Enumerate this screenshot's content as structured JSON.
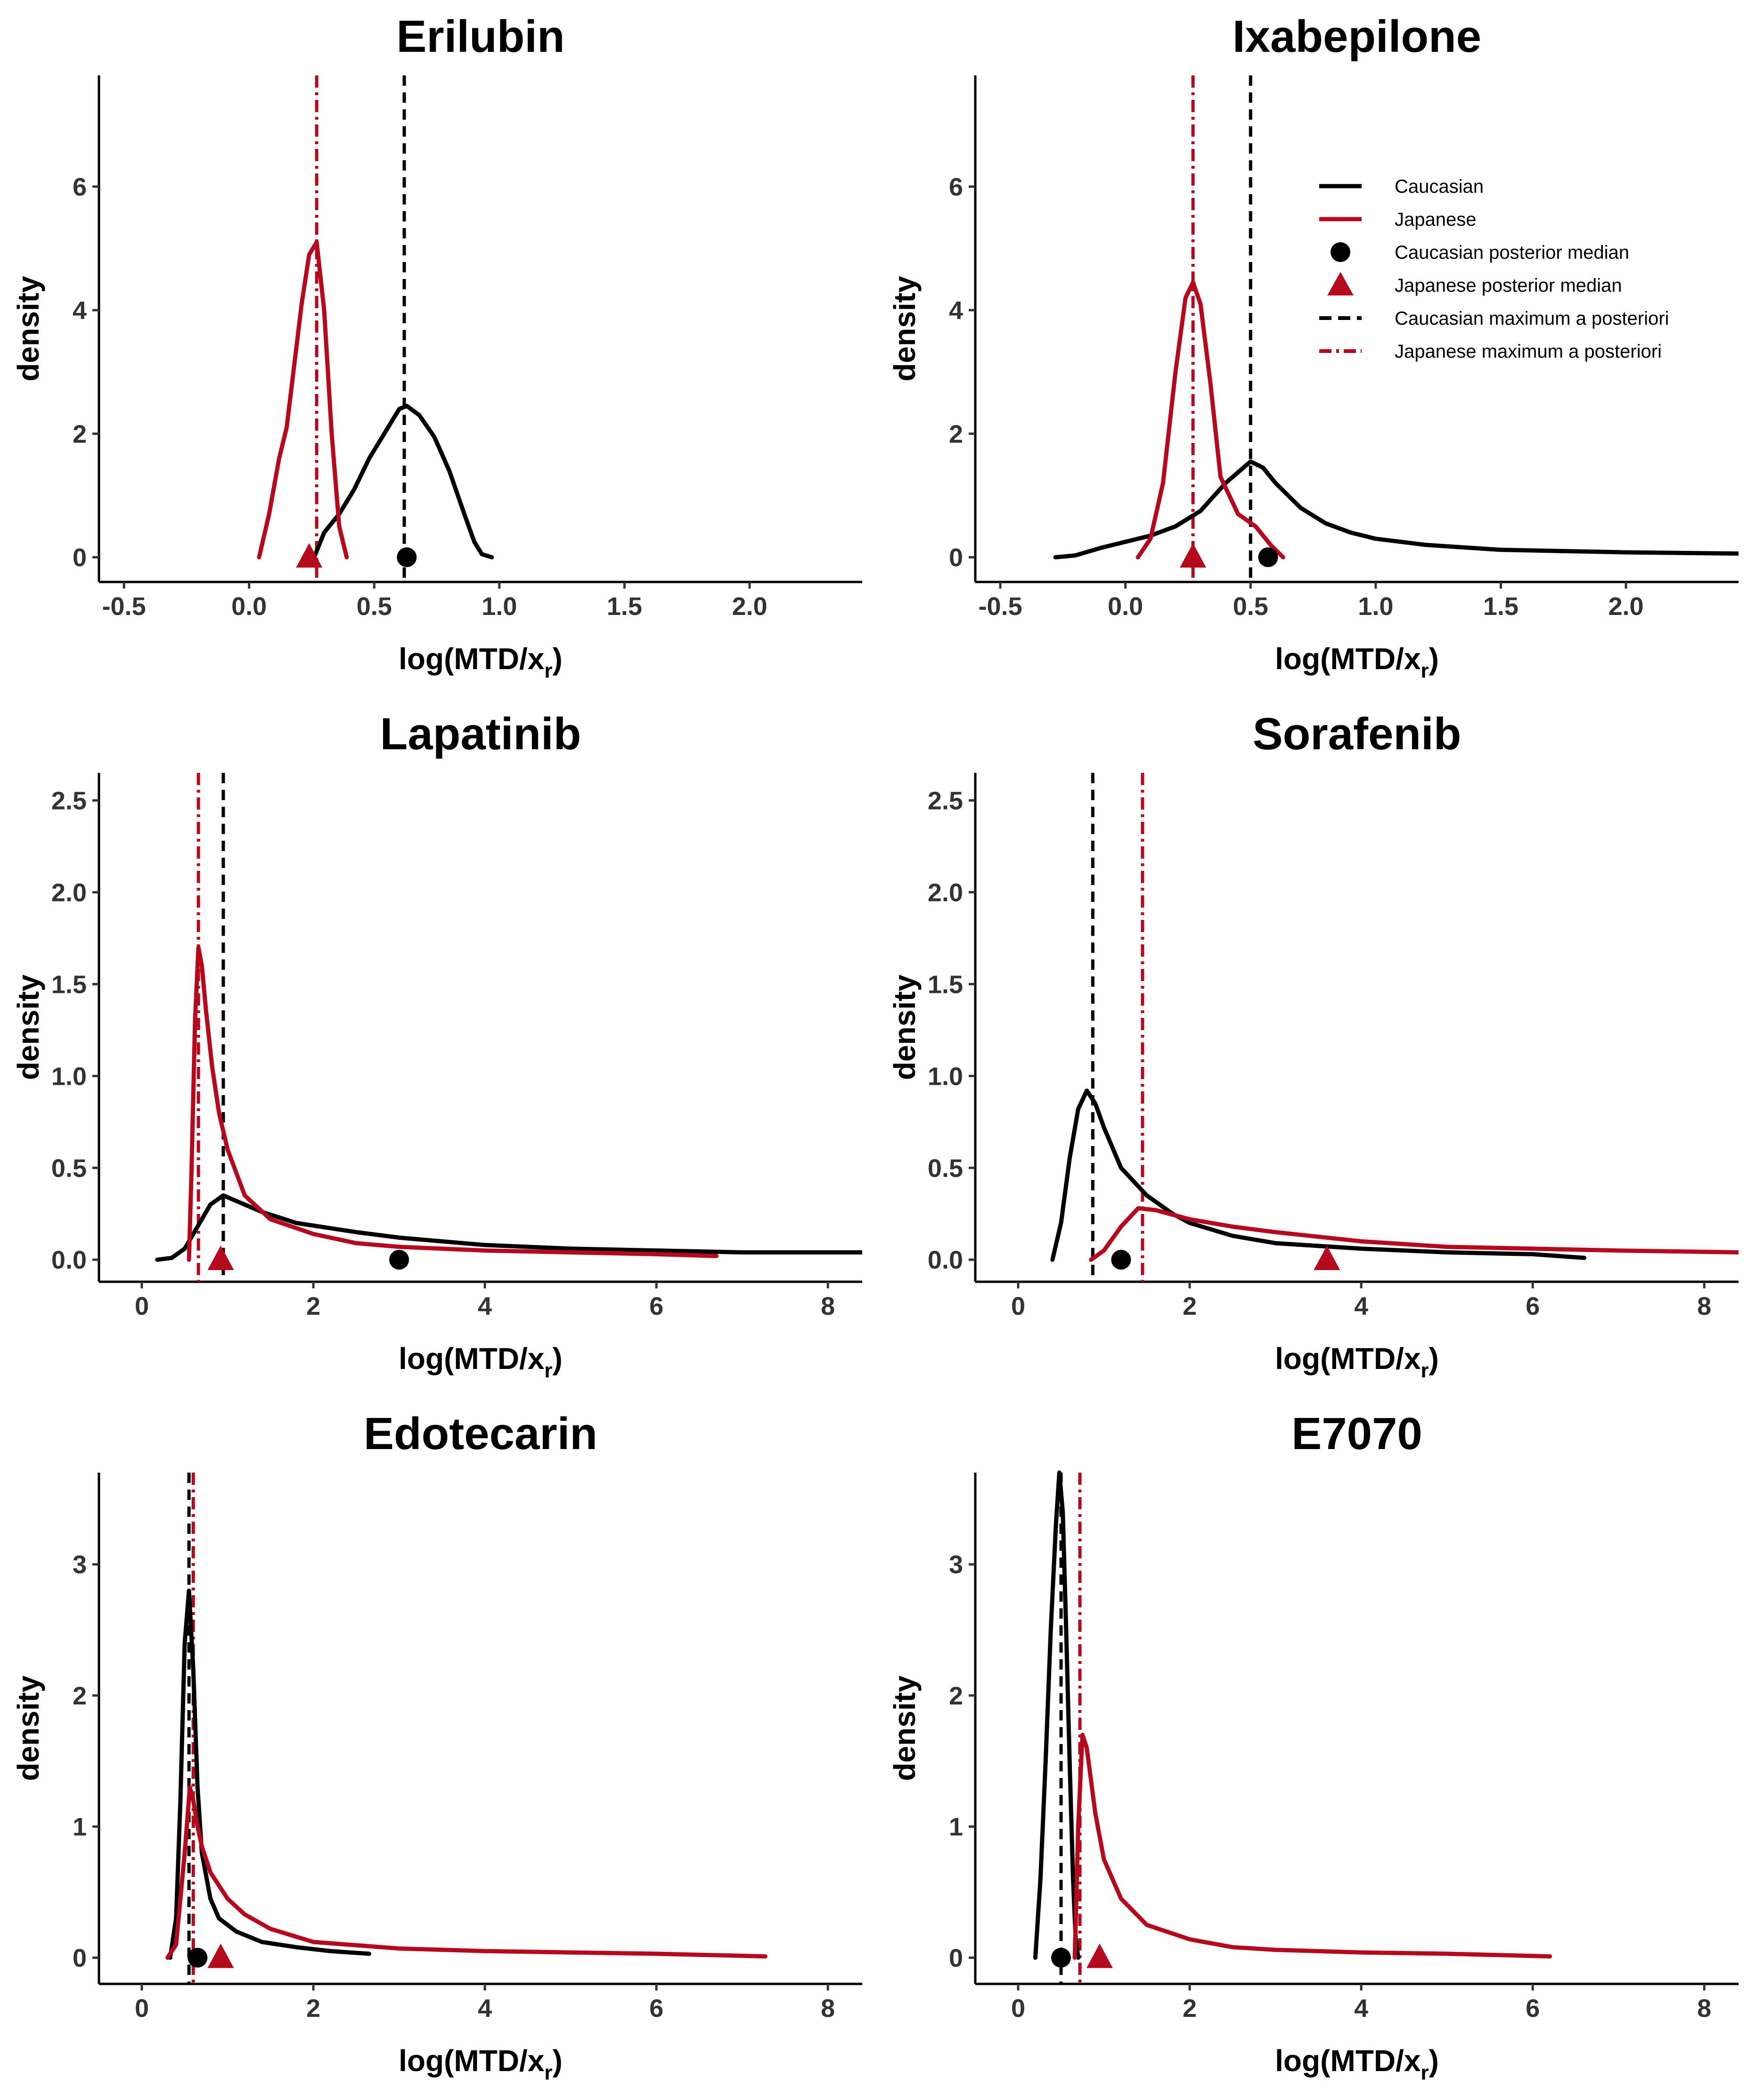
{
  "colors": {
    "caucasian": "#000000",
    "japanese": "#B5091E"
  },
  "chart_data": [
    {
      "type": "line",
      "title": "Erilubin",
      "xlabel": "log(MTD/x_r)",
      "ylabel": "density",
      "xlim": [
        -0.6,
        2.45
      ],
      "ylim": [
        -0.4,
        7.8
      ],
      "xticks": [
        -0.5,
        0.0,
        0.5,
        1.0,
        1.5,
        2.0
      ],
      "xtick_labels": [
        "-0.5",
        "0.0",
        "0.5",
        "1.0",
        "1.5",
        "2.0"
      ],
      "yticks": [
        0,
        2,
        4,
        6
      ],
      "ytick_labels": [
        "0",
        "2",
        "4",
        "6"
      ],
      "series": [
        {
          "name": "Caucasian",
          "x": [
            0.26,
            0.3,
            0.36,
            0.42,
            0.48,
            0.54,
            0.6,
            0.63,
            0.68,
            0.74,
            0.8,
            0.86,
            0.9,
            0.93,
            0.97
          ],
          "y": [
            0,
            0.4,
            0.7,
            1.1,
            1.6,
            2.0,
            2.4,
            2.45,
            2.3,
            1.95,
            1.4,
            0.7,
            0.25,
            0.05,
            0
          ]
        },
        {
          "name": "Japanese",
          "x": [
            0.04,
            0.08,
            0.12,
            0.15,
            0.18,
            0.21,
            0.24,
            0.27,
            0.3,
            0.33,
            0.36,
            0.39
          ],
          "y": [
            0,
            0.7,
            1.6,
            2.1,
            3.1,
            4.1,
            4.9,
            5.1,
            4.0,
            2.0,
            0.5,
            0
          ]
        }
      ],
      "posterior_median": {
        "Caucasian": 0.63,
        "Japanese": 0.24
      },
      "map": {
        "Caucasian": 0.62,
        "Japanese": 0.27
      }
    },
    {
      "type": "line",
      "title": "Ixabepilone",
      "xlabel": "log(MTD/x_r)",
      "ylabel": "density",
      "xlim": [
        -0.6,
        2.45
      ],
      "ylim": [
        -0.4,
        7.8
      ],
      "xticks": [
        -0.5,
        0.0,
        0.5,
        1.0,
        1.5,
        2.0
      ],
      "xtick_labels": [
        "-0.5",
        "0.0",
        "0.5",
        "1.0",
        "1.5",
        "2.0"
      ],
      "yticks": [
        0,
        2,
        4,
        6
      ],
      "ytick_labels": [
        "0",
        "2",
        "4",
        "6"
      ],
      "series": [
        {
          "name": "Caucasian",
          "x": [
            -0.28,
            -0.2,
            -0.1,
            0.0,
            0.1,
            0.2,
            0.3,
            0.4,
            0.5,
            0.55,
            0.6,
            0.7,
            0.8,
            0.9,
            1.0,
            1.2,
            1.5,
            2.0,
            2.45
          ],
          "y": [
            0,
            0.03,
            0.15,
            0.25,
            0.35,
            0.5,
            0.75,
            1.2,
            1.55,
            1.45,
            1.2,
            0.8,
            0.55,
            0.4,
            0.3,
            0.2,
            0.12,
            0.08,
            0.06
          ]
        },
        {
          "name": "Japanese",
          "x": [
            0.05,
            0.1,
            0.15,
            0.2,
            0.24,
            0.27,
            0.3,
            0.34,
            0.38,
            0.45,
            0.52,
            0.58,
            0.63
          ],
          "y": [
            0,
            0.3,
            1.2,
            3.0,
            4.2,
            4.45,
            4.1,
            2.8,
            1.3,
            0.7,
            0.5,
            0.2,
            0
          ]
        }
      ],
      "posterior_median": {
        "Caucasian": 0.57,
        "Japanese": 0.27
      },
      "map": {
        "Caucasian": 0.5,
        "Japanese": 0.27
      },
      "legend": {
        "position": "top-right",
        "entries": [
          "Caucasian",
          "Japanese",
          "Caucasian posterior median",
          "Japanese posterior median",
          "Caucasian maximum a posteriori",
          "Japanese maximum a posteriori"
        ]
      }
    },
    {
      "type": "line",
      "title": "Lapatinib",
      "xlabel": "log(MTD/x_r)",
      "ylabel": "density",
      "xlim": [
        -0.5,
        8.4
      ],
      "ylim": [
        -0.12,
        2.65
      ],
      "xticks": [
        0,
        2,
        4,
        6,
        8
      ],
      "xtick_labels": [
        "0",
        "2",
        "4",
        "6",
        "8"
      ],
      "yticks": [
        0.0,
        0.5,
        1.0,
        1.5,
        2.0,
        2.5
      ],
      "ytick_labels": [
        "0.0",
        "0.5",
        "1.0",
        "1.5",
        "2.0",
        "2.5"
      ],
      "series": [
        {
          "name": "Caucasian",
          "x": [
            0.18,
            0.35,
            0.5,
            0.65,
            0.8,
            0.95,
            1.1,
            1.4,
            1.8,
            2.5,
            3.0,
            4.0,
            5.0,
            6.0,
            7.0,
            8.4
          ],
          "y": [
            0,
            0.01,
            0.06,
            0.18,
            0.3,
            0.35,
            0.32,
            0.26,
            0.2,
            0.15,
            0.12,
            0.08,
            0.06,
            0.05,
            0.04,
            0.04
          ]
        },
        {
          "name": "Japanese",
          "x": [
            0.55,
            0.58,
            0.62,
            0.66,
            0.7,
            0.75,
            0.82,
            0.9,
            1.0,
            1.2,
            1.5,
            2.0,
            2.5,
            3.0,
            4.0,
            5.0,
            6.0,
            6.7
          ],
          "y": [
            0,
            0.5,
            1.3,
            1.7,
            1.6,
            1.35,
            1.05,
            0.8,
            0.6,
            0.35,
            0.22,
            0.14,
            0.09,
            0.07,
            0.05,
            0.04,
            0.03,
            0.02
          ]
        }
      ],
      "posterior_median": {
        "Caucasian": 3.0,
        "Japanese": 0.92
      },
      "map": {
        "Caucasian": 0.95,
        "Japanese": 0.66
      }
    },
    {
      "type": "line",
      "title": "Sorafenib",
      "xlabel": "log(MTD/x_r)",
      "ylabel": "density",
      "xlim": [
        -0.5,
        8.4
      ],
      "ylim": [
        -0.12,
        2.65
      ],
      "xticks": [
        0,
        2,
        4,
        6,
        8
      ],
      "xtick_labels": [
        "0",
        "2",
        "4",
        "6",
        "8"
      ],
      "yticks": [
        0.0,
        0.5,
        1.0,
        1.5,
        2.0,
        2.5
      ],
      "ytick_labels": [
        "0.0",
        "0.5",
        "1.0",
        "1.5",
        "2.0",
        "2.5"
      ],
      "series": [
        {
          "name": "Caucasian",
          "x": [
            0.4,
            0.5,
            0.6,
            0.7,
            0.8,
            0.9,
            1.0,
            1.2,
            1.5,
            1.8,
            2.0,
            2.5,
            3.0,
            4.0,
            5.0,
            6.0,
            6.6
          ],
          "y": [
            0,
            0.2,
            0.55,
            0.82,
            0.92,
            0.85,
            0.72,
            0.5,
            0.35,
            0.25,
            0.2,
            0.13,
            0.09,
            0.06,
            0.04,
            0.03,
            0.01
          ]
        },
        {
          "name": "Japanese",
          "x": [
            0.85,
            1.0,
            1.2,
            1.4,
            1.6,
            2.0,
            2.5,
            3.0,
            4.0,
            5.0,
            6.0,
            7.0,
            8.4
          ],
          "y": [
            0,
            0.05,
            0.18,
            0.28,
            0.27,
            0.22,
            0.18,
            0.15,
            0.1,
            0.07,
            0.06,
            0.05,
            0.04
          ]
        }
      ],
      "posterior_median": {
        "Caucasian": 1.2,
        "Japanese": 3.6
      },
      "map": {
        "Caucasian": 0.87,
        "Japanese": 1.45
      }
    },
    {
      "type": "line",
      "title": "Edotecarin",
      "xlabel": "log(MTD/x_r)",
      "ylabel": "density",
      "xlim": [
        -0.5,
        8.4
      ],
      "ylim": [
        -0.2,
        3.7
      ],
      "xticks": [
        0,
        2,
        4,
        6,
        8
      ],
      "xtick_labels": [
        "0",
        "2",
        "4",
        "6",
        "8"
      ],
      "yticks": [
        0,
        1,
        2,
        3
      ],
      "ytick_labels": [
        "0",
        "1",
        "2",
        "3"
      ],
      "series": [
        {
          "name": "Caucasian",
          "x": [
            0.33,
            0.4,
            0.45,
            0.5,
            0.55,
            0.6,
            0.65,
            0.7,
            0.8,
            0.9,
            1.1,
            1.4,
            1.8,
            2.2,
            2.65
          ],
          "y": [
            0,
            0.3,
            1.2,
            2.4,
            2.8,
            2.2,
            1.3,
            0.8,
            0.45,
            0.3,
            0.2,
            0.12,
            0.08,
            0.05,
            0.03
          ]
        },
        {
          "name": "Japanese",
          "x": [
            0.3,
            0.4,
            0.5,
            0.56,
            0.6,
            0.65,
            0.7,
            0.8,
            1.0,
            1.2,
            1.5,
            2.0,
            3.0,
            4.0,
            5.0,
            6.0,
            7.27
          ],
          "y": [
            0,
            0.1,
            0.8,
            1.3,
            1.2,
            1.0,
            0.85,
            0.65,
            0.45,
            0.33,
            0.22,
            0.12,
            0.07,
            0.05,
            0.04,
            0.03,
            0.01
          ]
        }
      ],
      "posterior_median": {
        "Caucasian": 0.65,
        "Japanese": 0.92
      },
      "map": {
        "Caucasian": 0.55,
        "Japanese": 0.6
      }
    },
    {
      "type": "line",
      "title": "E7070",
      "xlabel": "log(MTD/x_r)",
      "ylabel": "density",
      "xlim": [
        -0.5,
        8.4
      ],
      "ylim": [
        -0.2,
        3.7
      ],
      "xticks": [
        0,
        2,
        4,
        6,
        8
      ],
      "xtick_labels": [
        "0",
        "2",
        "4",
        "6",
        "8"
      ],
      "yticks": [
        0,
        1,
        2,
        3
      ],
      "ytick_labels": [
        "0",
        "1",
        "2",
        "3"
      ],
      "series": [
        {
          "name": "Caucasian",
          "x": [
            0.2,
            0.26,
            0.32,
            0.38,
            0.44,
            0.48,
            0.52,
            0.56,
            0.6,
            0.64,
            0.67,
            0.7
          ],
          "y": [
            0,
            0.6,
            1.5,
            2.5,
            3.3,
            3.7,
            3.4,
            2.5,
            1.5,
            0.6,
            0.15,
            0
          ]
        },
        {
          "name": "Japanese",
          "x": [
            0.66,
            0.7,
            0.75,
            0.8,
            0.9,
            1.0,
            1.2,
            1.5,
            2.0,
            2.5,
            3.0,
            4.0,
            5.0,
            6.2
          ],
          "y": [
            0,
            1.0,
            1.7,
            1.6,
            1.1,
            0.75,
            0.45,
            0.25,
            0.14,
            0.08,
            0.06,
            0.04,
            0.03,
            0.01
          ]
        }
      ],
      "posterior_median": {
        "Caucasian": 0.5,
        "Japanese": 0.95
      },
      "map": {
        "Caucasian": 0.5,
        "Japanese": 0.72
      }
    }
  ]
}
